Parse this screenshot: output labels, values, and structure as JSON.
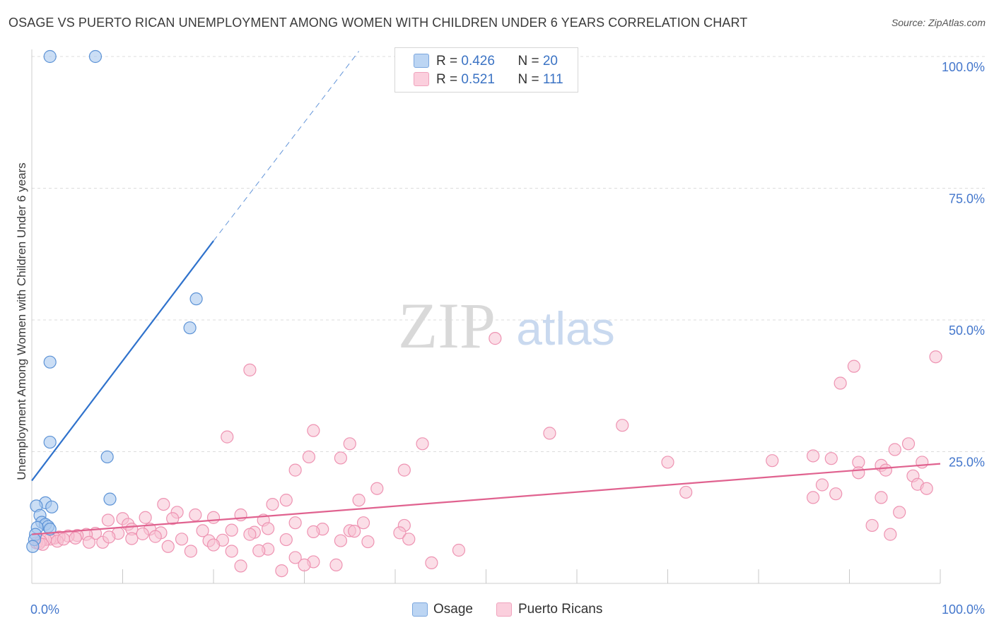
{
  "title": "OSAGE VS PUERTO RICAN UNEMPLOYMENT AMONG WOMEN WITH CHILDREN UNDER 6 YEARS CORRELATION CHART",
  "source": "Source: ZipAtlas.com",
  "watermark": {
    "zip": "ZIP",
    "atlas": "atlas"
  },
  "legend_top": [
    {
      "r_label": "R = ",
      "r_value": "0.426",
      "n_label": "N = ",
      "n_value": "20",
      "color": "#8fb8e8"
    },
    {
      "r_label": "R = ",
      "r_value": "0.521",
      "n_label": "N = ",
      "n_value": "111",
      "color": "#f5aac3"
    }
  ],
  "legend_bottom": [
    {
      "label": "Osage"
    },
    {
      "label": "Puerto Ricans"
    }
  ],
  "colors": {
    "osage_fill": "#a9c8ee",
    "osage_stroke": "#5d93d6",
    "osage_line": "#2f72cc",
    "pr_fill": "#f8c3d4",
    "pr_stroke": "#ee93b2",
    "pr_line": "#e0628f",
    "grid": "#dcdcdc",
    "tick_label": "#4477cc"
  },
  "chart_data": {
    "type": "scatter",
    "title": "OSAGE VS PUERTO RICAN UNEMPLOYMENT AMONG WOMEN WITH CHILDREN UNDER 6 YEARS CORRELATION CHART",
    "xlabel": "",
    "ylabel": "Unemployment Among Women with Children Under 6 years",
    "xlim": [
      0,
      100
    ],
    "ylim": [
      0,
      100
    ],
    "x_tick_labels": [
      {
        "value": 0,
        "label": "0.0%"
      },
      {
        "value": 100,
        "label": "100.0%"
      }
    ],
    "y_tick_labels": [
      {
        "value": 25,
        "label": "25.0%"
      },
      {
        "value": 50,
        "label": "50.0%"
      },
      {
        "value": 75,
        "label": "75.0%"
      },
      {
        "value": 100,
        "label": "100.0%"
      }
    ],
    "series": [
      {
        "name": "Osage",
        "r": 0.426,
        "n": 20,
        "points": [
          [
            2.0,
            100.0
          ],
          [
            7.0,
            100.0
          ],
          [
            18.1,
            54.0
          ],
          [
            17.4,
            48.5
          ],
          [
            2.0,
            42.0
          ],
          [
            2.0,
            26.8
          ],
          [
            8.3,
            24.0
          ],
          [
            8.6,
            16.0
          ],
          [
            1.5,
            15.3
          ],
          [
            0.5,
            14.7
          ],
          [
            2.2,
            14.5
          ],
          [
            0.9,
            12.9
          ],
          [
            1.1,
            11.6
          ],
          [
            1.5,
            11.2
          ],
          [
            1.8,
            10.8
          ],
          [
            0.6,
            10.6
          ],
          [
            2.0,
            10.3
          ],
          [
            0.4,
            9.3
          ],
          [
            0.3,
            8.3
          ],
          [
            0.1,
            7.0
          ]
        ],
        "trend": {
          "x0": 0.0,
          "y0": 19.5,
          "x1": 20.0,
          "y1": 65.0,
          "dash_to_x": 36.0,
          "dash_to_y": 101.0
        }
      },
      {
        "name": "Puerto Ricans",
        "r": 0.521,
        "n": 111,
        "points": [
          [
            51.0,
            46.5
          ],
          [
            24.0,
            40.5
          ],
          [
            21.5,
            27.8
          ],
          [
            31.0,
            29.0
          ],
          [
            35.0,
            26.5
          ],
          [
            43.0,
            26.5
          ],
          [
            57.0,
            28.5
          ],
          [
            65.0,
            30.0
          ],
          [
            30.5,
            24.0
          ],
          [
            34.0,
            23.8
          ],
          [
            29.0,
            21.5
          ],
          [
            41.0,
            21.5
          ],
          [
            38.0,
            18.0
          ],
          [
            36.0,
            15.8
          ],
          [
            28.0,
            15.8
          ],
          [
            26.5,
            15.0
          ],
          [
            14.5,
            15.0
          ],
          [
            18.0,
            13.0
          ],
          [
            23.0,
            13.0
          ],
          [
            16.0,
            13.5
          ],
          [
            12.5,
            12.5
          ],
          [
            15.5,
            12.3
          ],
          [
            20.0,
            12.5
          ],
          [
            10.0,
            12.3
          ],
          [
            8.4,
            12.0
          ],
          [
            25.5,
            12.0
          ],
          [
            29.0,
            11.5
          ],
          [
            36.5,
            11.5
          ],
          [
            41.0,
            11.0
          ],
          [
            10.6,
            11.2
          ],
          [
            11.0,
            10.3
          ],
          [
            13.0,
            10.3
          ],
          [
            14.2,
            9.6
          ],
          [
            18.8,
            10.0
          ],
          [
            26.0,
            10.4
          ],
          [
            32.0,
            10.3
          ],
          [
            35.0,
            10.0
          ],
          [
            22.0,
            10.1
          ],
          [
            24.5,
            9.7
          ],
          [
            31.0,
            9.8
          ],
          [
            40.5,
            9.6
          ],
          [
            9.5,
            9.5
          ],
          [
            12.2,
            9.4
          ],
          [
            7.0,
            9.5
          ],
          [
            6.0,
            9.3
          ],
          [
            5.0,
            9.1
          ],
          [
            4.0,
            9.0
          ],
          [
            3.0,
            8.8
          ],
          [
            2.5,
            8.6
          ],
          [
            2.0,
            8.4
          ],
          [
            1.5,
            8.3
          ],
          [
            1.0,
            8.0
          ],
          [
            0.5,
            7.7
          ],
          [
            0.8,
            7.6
          ],
          [
            1.2,
            7.4
          ],
          [
            2.8,
            8.0
          ],
          [
            3.5,
            8.4
          ],
          [
            4.8,
            8.6
          ],
          [
            6.3,
            7.8
          ],
          [
            7.8,
            7.8
          ],
          [
            8.5,
            8.8
          ],
          [
            11.0,
            8.5
          ],
          [
            13.6,
            8.9
          ],
          [
            16.5,
            8.4
          ],
          [
            19.5,
            8.1
          ],
          [
            21.0,
            8.2
          ],
          [
            15.0,
            7.0
          ],
          [
            17.5,
            6.1
          ],
          [
            22.0,
            6.1
          ],
          [
            20.0,
            7.3
          ],
          [
            26.0,
            6.5
          ],
          [
            25.0,
            6.2
          ],
          [
            29.0,
            4.9
          ],
          [
            31.0,
            4.1
          ],
          [
            33.5,
            3.5
          ],
          [
            23.0,
            3.3
          ],
          [
            27.5,
            2.4
          ],
          [
            30.0,
            3.5
          ],
          [
            44.0,
            3.9
          ],
          [
            47.0,
            6.3
          ],
          [
            34.0,
            8.1
          ],
          [
            37.0,
            7.9
          ],
          [
            41.5,
            8.4
          ],
          [
            28.0,
            8.3
          ],
          [
            24.0,
            9.3
          ],
          [
            35.5,
            9.9
          ],
          [
            70.0,
            23.0
          ],
          [
            81.5,
            23.3
          ],
          [
            86.0,
            24.2
          ],
          [
            88.0,
            23.7
          ],
          [
            91.0,
            23.0
          ],
          [
            93.5,
            22.4
          ],
          [
            95.0,
            25.4
          ],
          [
            96.5,
            26.5
          ],
          [
            98.0,
            23.0
          ],
          [
            99.5,
            43.0
          ],
          [
            90.5,
            41.2
          ],
          [
            89.0,
            38.0
          ],
          [
            72.0,
            17.3
          ],
          [
            87.0,
            18.7
          ],
          [
            86.0,
            16.3
          ],
          [
            88.5,
            17.0
          ],
          [
            91.0,
            21.0
          ],
          [
            93.5,
            16.3
          ],
          [
            94.0,
            21.5
          ],
          [
            97.0,
            20.4
          ],
          [
            97.5,
            18.8
          ],
          [
            98.5,
            18.0
          ],
          [
            95.5,
            13.5
          ],
          [
            92.5,
            11.0
          ],
          [
            94.5,
            9.3
          ]
        ],
        "trend": {
          "x0": 0.0,
          "y0": 9.3,
          "x1": 100.0,
          "y1": 22.7
        }
      }
    ]
  }
}
